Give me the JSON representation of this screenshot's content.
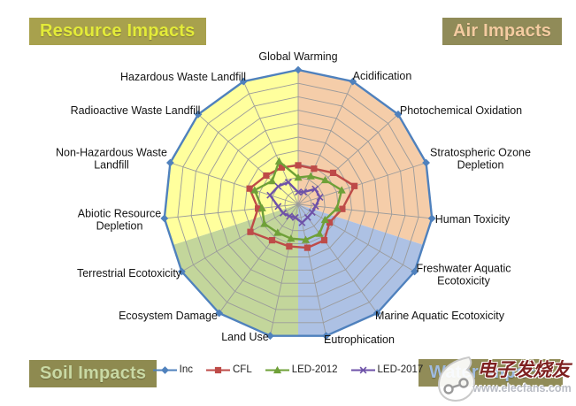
{
  "badges": {
    "resource": {
      "label": "Resource Impacts",
      "bg": "#A8A14D",
      "fg": "#E3EB39"
    },
    "air": {
      "label": "Air Impacts",
      "bg": "#908B58",
      "fg": "#F4CBA0"
    },
    "soil": {
      "label": "Soil Impacts",
      "bg": "#8E8A50",
      "fg": "#C9D9A4"
    },
    "water": {
      "label": "Water Impacts",
      "bg": "#918C58",
      "fg": "#9FBBE0"
    }
  },
  "chart_data": {
    "type": "radar",
    "categories": [
      "Global Warming",
      "Acidification",
      "Photochemical Oxidation",
      "Stratospheric Ozone Depletion",
      "Human Toxicity",
      "Freshwater Aquatic Ecotoxicity",
      "Marine Aquatic Ecotoxicity",
      "Eutrophication",
      "Land Use",
      "Ecosystem Damage",
      "Terrestrial Ecotoxicity",
      "Abiotic Resource Depletion",
      "Non-Hazardous Waste Landfill",
      "Radioactive Waste Landfill",
      "Hazardous Waste Landfill"
    ],
    "rings": 10,
    "value_axis_max": 10,
    "grid_color": "#9B9B9B",
    "series": [
      {
        "name": "Inc",
        "color": "#4F81BD",
        "marker": "diamond",
        "values": [
          10,
          10,
          10,
          10,
          10,
          10,
          10,
          10,
          10,
          10,
          10,
          10,
          10,
          10,
          10
        ]
      },
      {
        "name": "CFL",
        "color": "#BE4B48",
        "marker": "square",
        "values": [
          2.9,
          2.9,
          3.5,
          4.4,
          3.3,
          2.7,
          3.3,
          3.3,
          3.2,
          3.3,
          4.1,
          3.0,
          3.8,
          3.2,
          3.0
        ]
      },
      {
        "name": "LED-2012",
        "color": "#6FA038",
        "marker": "triangle",
        "values": [
          2.0,
          2.3,
          2.7,
          3.4,
          2.9,
          2.3,
          2.7,
          2.7,
          2.6,
          2.6,
          2.9,
          2.7,
          3.4,
          2.6,
          3.5
        ]
      },
      {
        "name": "LED-2017",
        "color": "#6E52A8",
        "marker": "x",
        "values": [
          0.9,
          1.0,
          1.7,
          1.7,
          1.3,
          1.2,
          1.2,
          1.4,
          1.0,
          1.1,
          1.3,
          1.5,
          2.2,
          2.0,
          1.8
        ]
      }
    ],
    "sectors": [
      {
        "name": "Air",
        "from_deg": 0,
        "to_deg": 108,
        "color": "#F5CDA9"
      },
      {
        "name": "Water",
        "from_deg": 108,
        "to_deg": 180,
        "color": "#ADC1E4"
      },
      {
        "name": "Soil",
        "from_deg": 180,
        "to_deg": 252,
        "color": "#C3D69B"
      },
      {
        "name": "Resource",
        "from_deg": 252,
        "to_deg": 360,
        "color": "#FFFF9D"
      }
    ],
    "legend_position": "bottom-center"
  },
  "watermark": {
    "brand": "电子发烧友",
    "url": "www.elecfans.com"
  }
}
